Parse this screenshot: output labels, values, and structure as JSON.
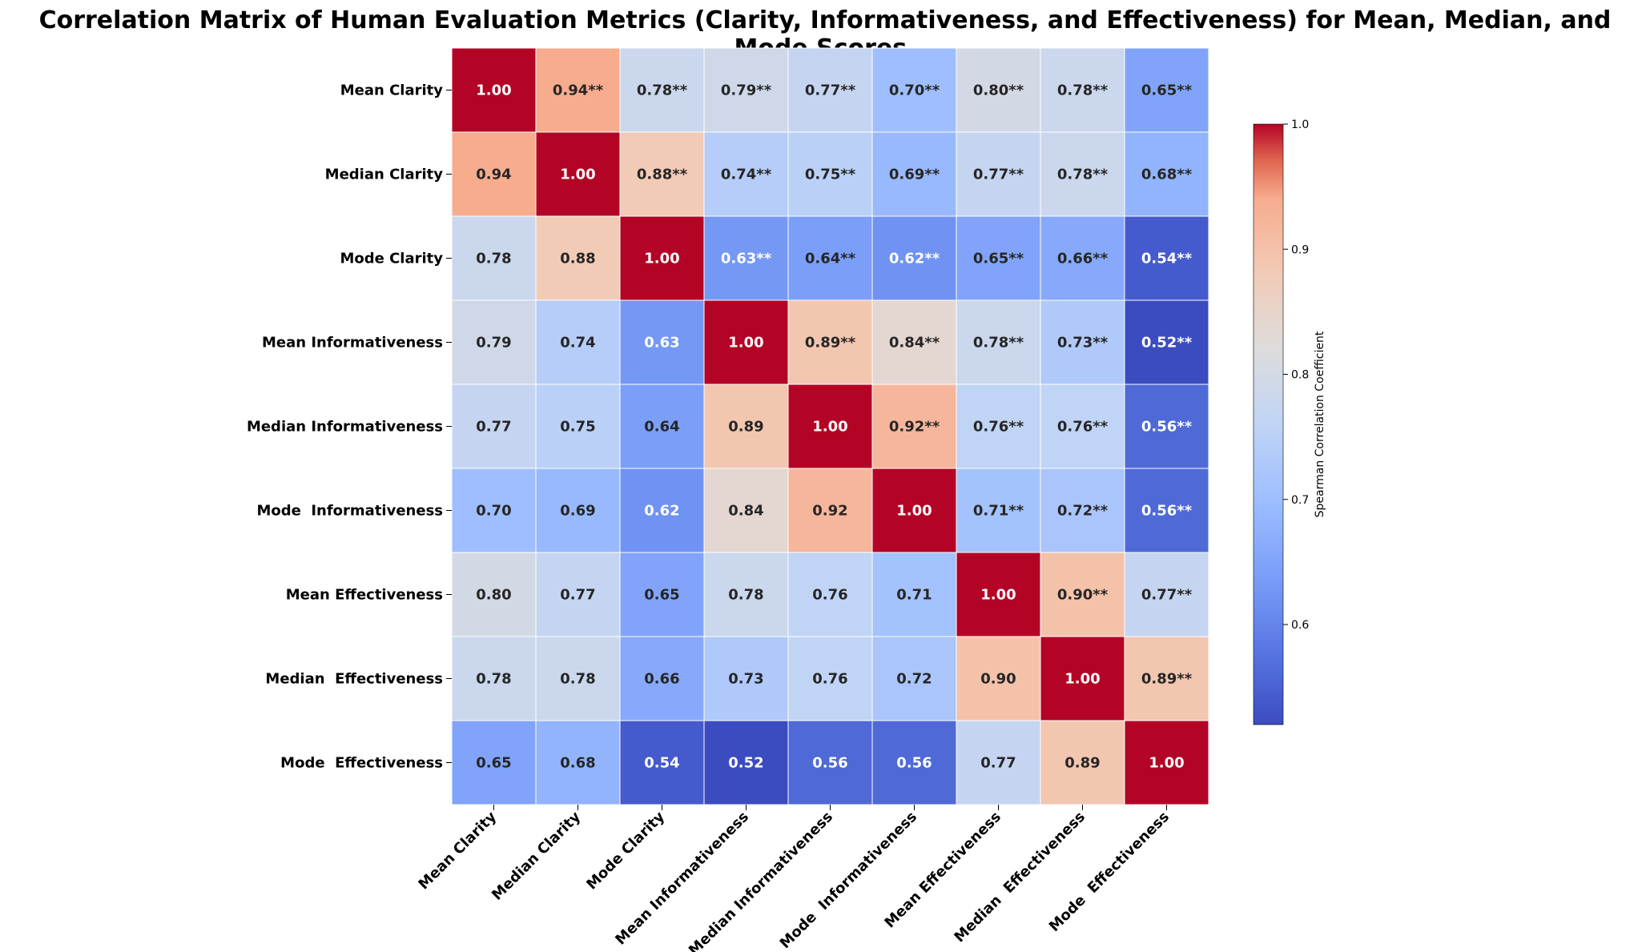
{
  "chart_data": {
    "type": "heatmap",
    "title": "Correlation Matrix of Human Evaluation Metrics (Clarity, Informativeness, and Effectiveness) for Mean, Median, and Mode Scores.",
    "labels": [
      "Mean Clarity",
      "Median Clarity",
      "Mode Clarity",
      "Mean Informativeness",
      "Median Informativeness",
      "Mode  Informativeness",
      "Mean Effectiveness",
      "Median  Effectiveness",
      "Mode  Effectiveness"
    ],
    "values": [
      [
        1.0,
        0.94,
        0.78,
        0.79,
        0.77,
        0.7,
        0.8,
        0.78,
        0.65
      ],
      [
        0.94,
        1.0,
        0.88,
        0.74,
        0.75,
        0.69,
        0.77,
        0.78,
        0.68
      ],
      [
        0.78,
        0.88,
        1.0,
        0.63,
        0.64,
        0.62,
        0.65,
        0.66,
        0.54
      ],
      [
        0.79,
        0.74,
        0.63,
        1.0,
        0.89,
        0.84,
        0.78,
        0.73,
        0.52
      ],
      [
        0.77,
        0.75,
        0.64,
        0.89,
        1.0,
        0.92,
        0.76,
        0.76,
        0.56
      ],
      [
        0.7,
        0.69,
        0.62,
        0.84,
        0.92,
        1.0,
        0.71,
        0.72,
        0.56
      ],
      [
        0.8,
        0.77,
        0.65,
        0.78,
        0.76,
        0.71,
        1.0,
        0.9,
        0.77
      ],
      [
        0.78,
        0.78,
        0.66,
        0.73,
        0.76,
        0.72,
        0.9,
        1.0,
        0.89
      ],
      [
        0.65,
        0.68,
        0.54,
        0.52,
        0.56,
        0.56,
        0.77,
        0.89,
        1.0
      ]
    ],
    "upper_triangle_suffix": "**",
    "colorbar": {
      "label": "Spearman Correlation Coefficient",
      "range": [
        0.52,
        1.0
      ],
      "ticks": [
        "0.6",
        "0.7",
        "0.8",
        "0.9",
        "1.0"
      ],
      "colormap": "coolwarm"
    }
  }
}
